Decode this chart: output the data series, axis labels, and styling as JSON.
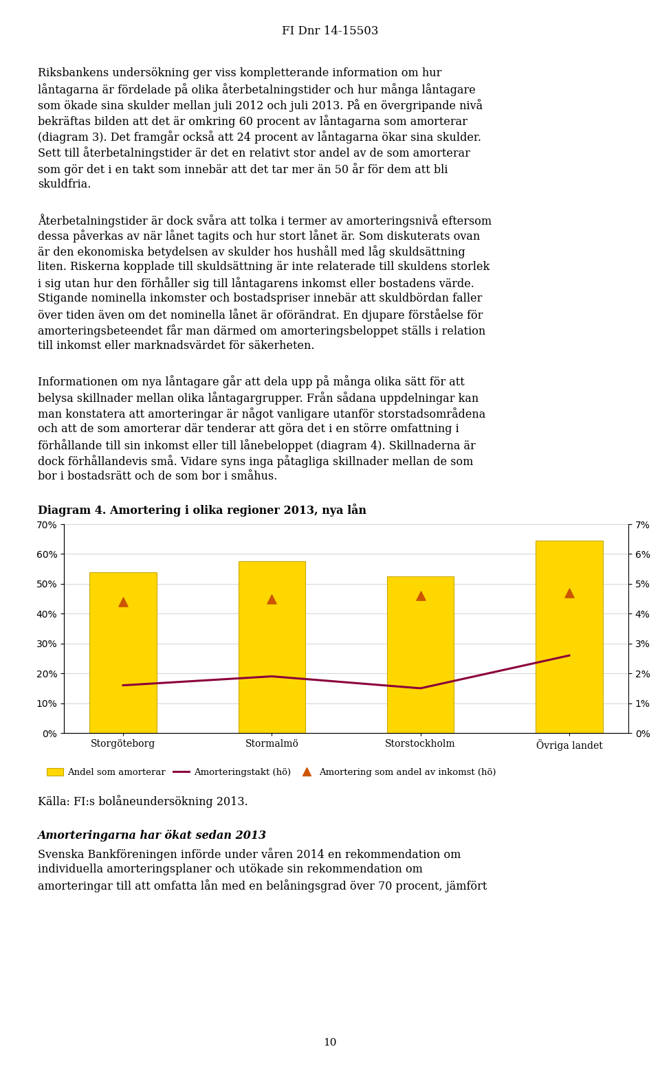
{
  "header_text": "FI Dnr 14-15503",
  "para1_lines": [
    "Riksbankens undersökning ger viss kompletterande information om hur",
    "låntagarna är fördelade på olika återbetalningstider och hur många låntagare",
    "som ökade sina skulder mellan juli 2012 och juli 2013. På en övergripande nivå",
    "bekräftas bilden att det är omkring 60 procent av låntagarna som amorterar",
    "(diagram 3). Det framgår också att 24 procent av låntagarna ökar sina skulder.",
    "Sett till återbetalningstider är det en relativt stor andel av de som amorterar",
    "som gör det i en takt som innebär att det tar mer än 50 år för dem att bli",
    "skuldfria."
  ],
  "para2_lines": [
    "Återbetalningstider är dock svåra att tolka i termer av amorteringsnivå eftersom",
    "dessa påverkas av när lånet tagits och hur stort lånet är. Som diskuterats ovan",
    "är den ekonomiska betydelsen av skulder hos hushåll med låg skuldsättning",
    "liten. Riskerna kopplade till skuldsättning är inte relaterade till skuldens storlek",
    "i sig utan hur den förhåller sig till låntagarens inkomst eller bostadens värde.",
    "Stigande nominella inkomster och bostadspriser innebär att skuldbördan faller",
    "över tiden även om det nominella lånet är oförändrat. En djupare förståelse för",
    "amorteringsbeteendet får man därmed om amorteringsbeloppet ställs i relation",
    "till inkomst eller marknadsvärdet för säkerheten."
  ],
  "para3_lines": [
    "Informationen om nya låntagare går att dela upp på många olika sätt för att",
    "belysa skillnader mellan olika låntagargrupper. Från sådana uppdelningar kan",
    "man konstatera att amorteringar är något vanligare utanför storstadsområdena",
    "och att de som amorterar där tenderar att göra det i en större omfattning i",
    "förhållande till sin inkomst eller till lånebeloppet (diagram 4). Skillnaderna är",
    "dock förhållandevis små. Vidare syns inga påtagliga skillnader mellan de som",
    "bor i bostadsrätt och de som bor i småhus."
  ],
  "diagram_title": "Diagram 4. Amortering i olika regioner 2013, nya lån",
  "categories": [
    "Storgöteborg",
    "Stormalmö",
    "Storstockholm",
    "Övriga landet"
  ],
  "bar_values": [
    0.54,
    0.575,
    0.525,
    0.645
  ],
  "line_values": [
    0.016,
    0.019,
    0.015,
    0.026
  ],
  "triangle_values": [
    0.044,
    0.045,
    0.046,
    0.047
  ],
  "bar_color": "#FFD700",
  "bar_edge_color": "#C8A800",
  "line_color": "#8B003B",
  "triangle_color": "#CC5500",
  "left_ylim": [
    0,
    0.7
  ],
  "right_ylim": [
    0,
    0.07
  ],
  "left_yticks": [
    0.0,
    0.1,
    0.2,
    0.3,
    0.4,
    0.5,
    0.6,
    0.7
  ],
  "right_yticks": [
    0.0,
    0.01,
    0.02,
    0.03,
    0.04,
    0.05,
    0.06,
    0.07
  ],
  "legend_labels": [
    "Andel som amorterar",
    "Amorteringstakt (hö)",
    "Amortering som andel av inkomst (hö)"
  ],
  "source_text": "Källa: FI:s bolåneundersökning 2013.",
  "bold_italic_heading": "Amorteringarna har ökat sedan 2013",
  "para4_lines": [
    "Svenska Bankföreningen införde under våren 2014 en rekommendation om",
    "individuella amorteringsplaner och utökade sin rekommendation om",
    "amorteringar till att omfatta lån med en belåningsgrad över 70 procent, jämfört"
  ],
  "page_number": "10",
  "background_color": "#ffffff",
  "text_color": "#000000",
  "font_size_body": 11.5,
  "font_size_header": 12,
  "font_size_diagram_title": 11.5,
  "font_size_axis": 10,
  "font_size_legend": 9.5
}
